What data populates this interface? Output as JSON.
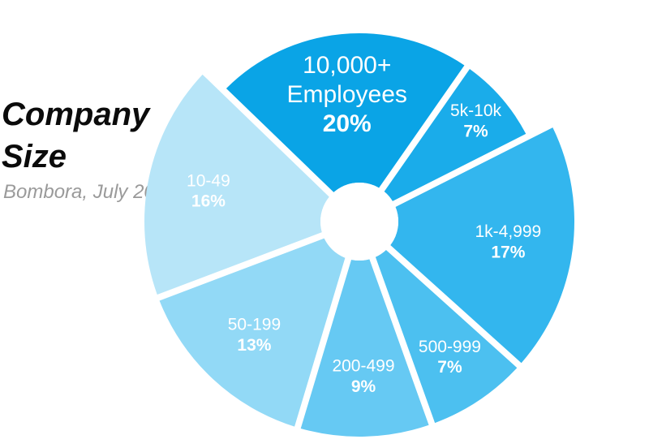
{
  "title_line1": "Company",
  "title_line2": "Size",
  "subtitle": "Bombora, July 2025",
  "chart_data": {
    "type": "pie",
    "slices": [
      {
        "label": "10,000+ Employees",
        "label_lines": [
          "10,000+",
          "Employees"
        ],
        "value": 20,
        "value_label": "20%",
        "color": "#0aa4e6"
      },
      {
        "label": "5k-10k",
        "label_lines": [
          "5k-10k"
        ],
        "value": 7,
        "value_label": "7%",
        "color": "#1aacea"
      },
      {
        "label": "1k-4,999",
        "label_lines": [
          "1k-4,999"
        ],
        "value": 17,
        "value_label": "17%",
        "color": "#33b6ee"
      },
      {
        "label": "500-999",
        "label_lines": [
          "500-999"
        ],
        "value": 7,
        "value_label": "7%",
        "color": "#4cc0f0"
      },
      {
        "label": "200-499",
        "label_lines": [
          "200-499"
        ],
        "value": 9,
        "value_label": "9%",
        "color": "#66c9f3"
      },
      {
        "label": "50-199",
        "label_lines": [
          "50-199"
        ],
        "value": 13,
        "value_label": "13%",
        "color": "#92d9f6"
      },
      {
        "label": "10-49",
        "label_lines": [
          "10-49"
        ],
        "value": 16,
        "value_label": "16%",
        "color": "#b7e5f8"
      }
    ]
  }
}
